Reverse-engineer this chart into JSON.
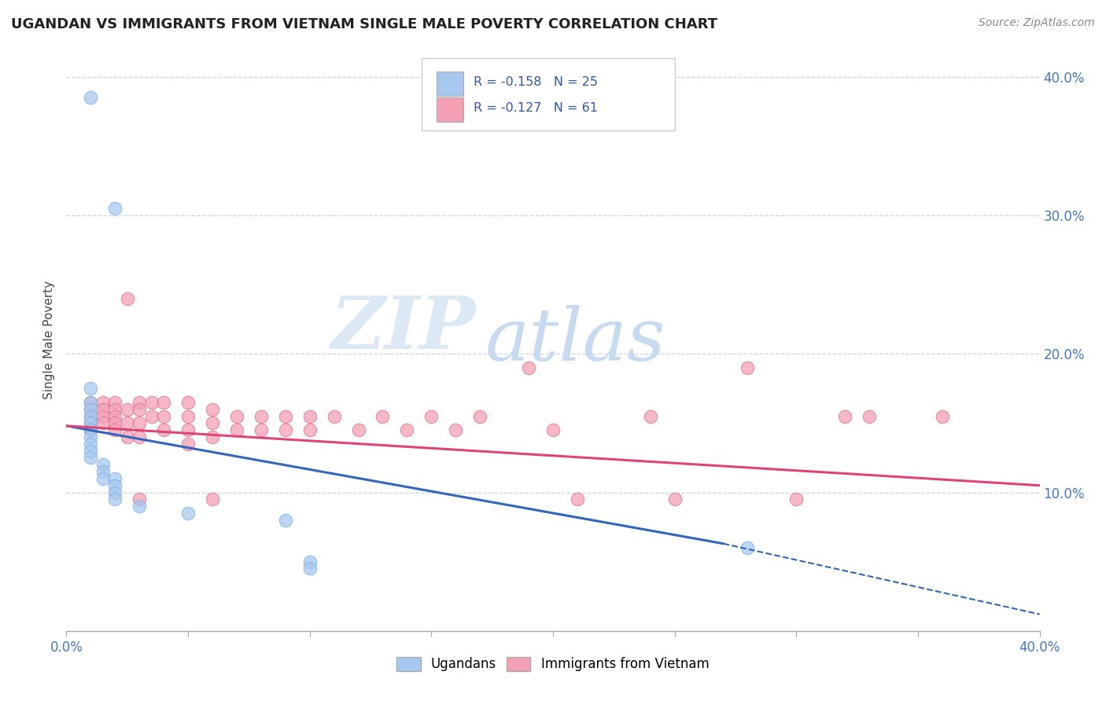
{
  "title": "UGANDAN VS IMMIGRANTS FROM VIETNAM SINGLE MALE POVERTY CORRELATION CHART",
  "source": "Source: ZipAtlas.com",
  "ylabel": "Single Male Poverty",
  "ugandan_color": "#a8c8f0",
  "ugandan_edge": "#7ab0e8",
  "vietnam_color": "#f4a0b5",
  "vietnam_edge": "#e07090",
  "ugandan_line_color": "#3366bb",
  "vietnam_line_color": "#dd4477",
  "ugandan_scatter": [
    [
      0.01,
      0.385
    ],
    [
      0.02,
      0.305
    ],
    [
      0.01,
      0.175
    ],
    [
      0.01,
      0.165
    ],
    [
      0.01,
      0.16
    ],
    [
      0.01,
      0.155
    ],
    [
      0.01,
      0.15
    ],
    [
      0.01,
      0.145
    ],
    [
      0.01,
      0.14
    ],
    [
      0.01,
      0.135
    ],
    [
      0.01,
      0.13
    ],
    [
      0.01,
      0.125
    ],
    [
      0.015,
      0.12
    ],
    [
      0.015,
      0.115
    ],
    [
      0.015,
      0.11
    ],
    [
      0.02,
      0.11
    ],
    [
      0.02,
      0.105
    ],
    [
      0.02,
      0.1
    ],
    [
      0.02,
      0.095
    ],
    [
      0.03,
      0.09
    ],
    [
      0.05,
      0.085
    ],
    [
      0.09,
      0.08
    ],
    [
      0.1,
      0.05
    ],
    [
      0.1,
      0.045
    ],
    [
      0.28,
      0.06
    ]
  ],
  "vietnam_scatter": [
    [
      0.01,
      0.165
    ],
    [
      0.01,
      0.16
    ],
    [
      0.01,
      0.155
    ],
    [
      0.01,
      0.15
    ],
    [
      0.01,
      0.145
    ],
    [
      0.015,
      0.165
    ],
    [
      0.015,
      0.16
    ],
    [
      0.015,
      0.155
    ],
    [
      0.015,
      0.15
    ],
    [
      0.02,
      0.165
    ],
    [
      0.02,
      0.16
    ],
    [
      0.02,
      0.155
    ],
    [
      0.02,
      0.15
    ],
    [
      0.02,
      0.145
    ],
    [
      0.025,
      0.24
    ],
    [
      0.025,
      0.16
    ],
    [
      0.025,
      0.15
    ],
    [
      0.025,
      0.14
    ],
    [
      0.03,
      0.165
    ],
    [
      0.03,
      0.16
    ],
    [
      0.03,
      0.15
    ],
    [
      0.03,
      0.14
    ],
    [
      0.03,
      0.095
    ],
    [
      0.035,
      0.165
    ],
    [
      0.035,
      0.155
    ],
    [
      0.04,
      0.165
    ],
    [
      0.04,
      0.155
    ],
    [
      0.04,
      0.145
    ],
    [
      0.05,
      0.165
    ],
    [
      0.05,
      0.155
    ],
    [
      0.05,
      0.145
    ],
    [
      0.05,
      0.135
    ],
    [
      0.06,
      0.16
    ],
    [
      0.06,
      0.15
    ],
    [
      0.06,
      0.14
    ],
    [
      0.06,
      0.095
    ],
    [
      0.07,
      0.155
    ],
    [
      0.07,
      0.145
    ],
    [
      0.08,
      0.155
    ],
    [
      0.08,
      0.145
    ],
    [
      0.09,
      0.155
    ],
    [
      0.09,
      0.145
    ],
    [
      0.1,
      0.155
    ],
    [
      0.1,
      0.145
    ],
    [
      0.11,
      0.155
    ],
    [
      0.12,
      0.145
    ],
    [
      0.13,
      0.155
    ],
    [
      0.14,
      0.145
    ],
    [
      0.15,
      0.155
    ],
    [
      0.16,
      0.145
    ],
    [
      0.17,
      0.155
    ],
    [
      0.19,
      0.19
    ],
    [
      0.2,
      0.145
    ],
    [
      0.21,
      0.095
    ],
    [
      0.24,
      0.155
    ],
    [
      0.25,
      0.095
    ],
    [
      0.28,
      0.19
    ],
    [
      0.3,
      0.095
    ],
    [
      0.32,
      0.155
    ],
    [
      0.33,
      0.155
    ],
    [
      0.36,
      0.155
    ]
  ],
  "background_color": "#ffffff",
  "grid_color": "#c8d4e8",
  "xmin": 0.0,
  "xmax": 0.4,
  "ymin": 0.0,
  "ymax": 0.42,
  "ytick_positions": [
    0.1,
    0.2,
    0.3,
    0.4
  ],
  "ytick_labels": [
    "10.0%",
    "20.0%",
    "30.0%",
    "40.0%"
  ],
  "xtick_positions": [
    0.0,
    0.05,
    0.1,
    0.15,
    0.2,
    0.25,
    0.3,
    0.35,
    0.4
  ],
  "xtick_labels": [
    "0.0%",
    "",
    "",
    "",
    "",
    "",
    "",
    "",
    "40.0%"
  ]
}
